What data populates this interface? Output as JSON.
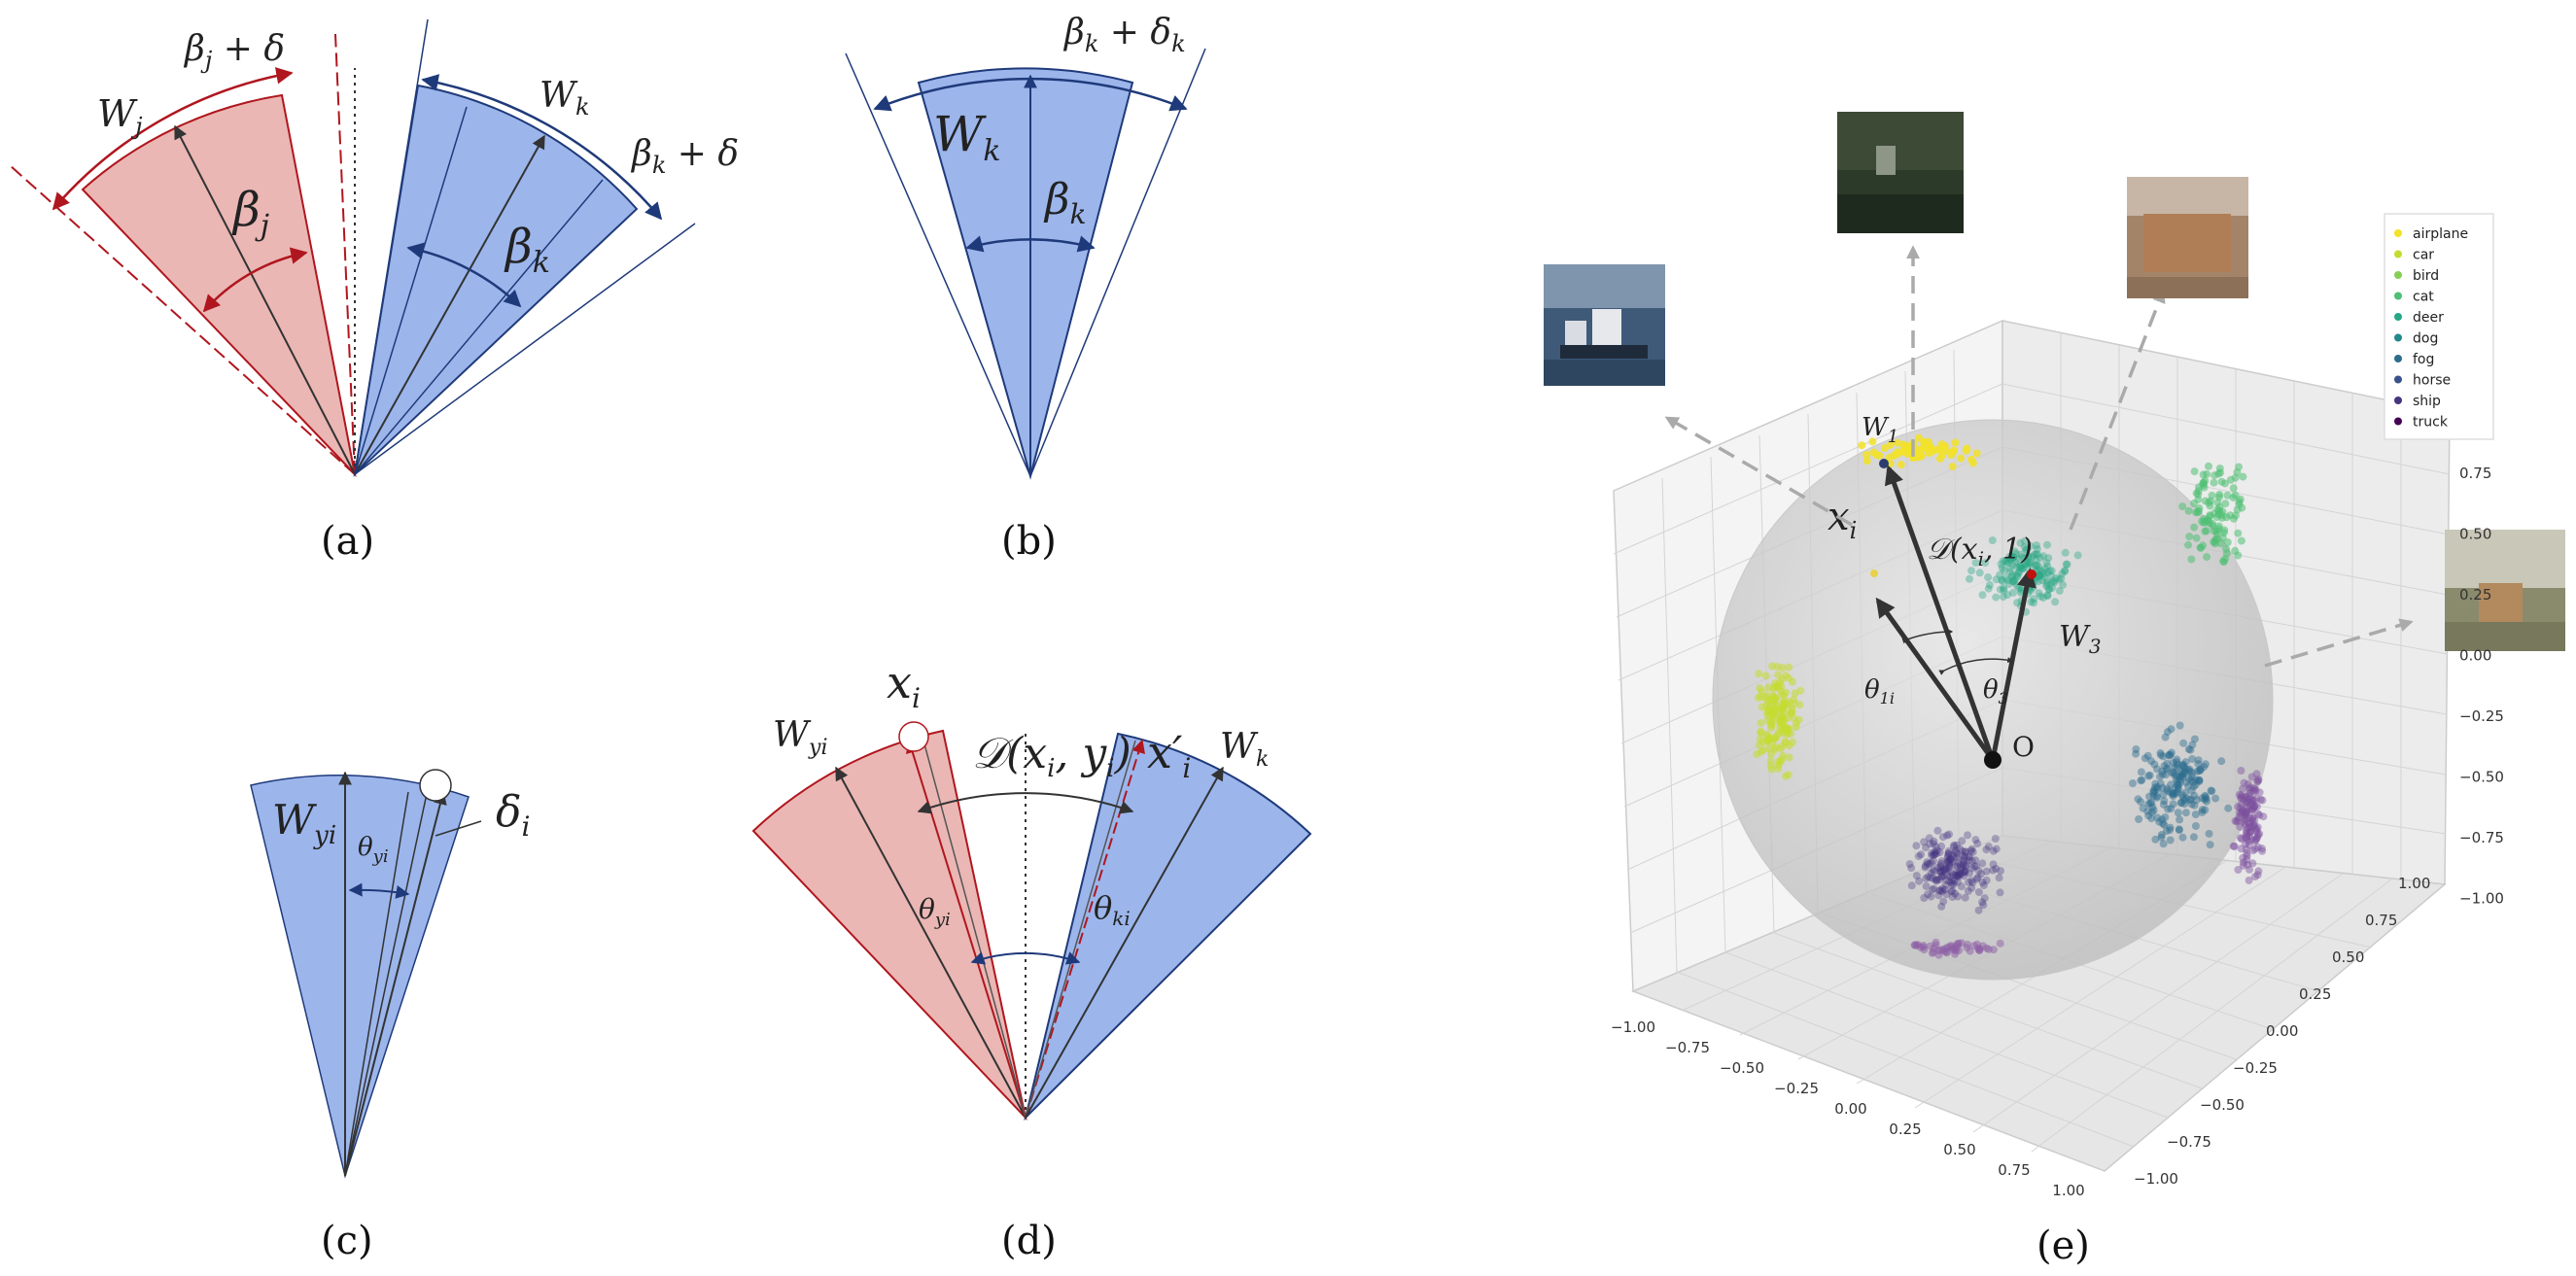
{
  "captions": {
    "a": "(a)",
    "b": "(b)",
    "c": "(c)",
    "d": "(d)",
    "e": "(e)"
  },
  "panel_a": {
    "wj": "W",
    "wj_sub": "j",
    "wk": "W",
    "wk_sub": "k",
    "beta_j": "β",
    "beta_j_sub": "j",
    "beta_k": "β",
    "beta_k_sub": "k",
    "bj_delta": "β",
    "bj_delta_sub": "j",
    "bj_delta_rest": " + δ",
    "bk_delta": "β",
    "bk_delta_sub": "k",
    "bk_delta_rest": " + δ"
  },
  "panel_b": {
    "wk": "W",
    "wk_sub": "k",
    "beta_k": "β",
    "beta_k_sub": "k",
    "bk_dk": "β",
    "bk_dk_sub": "k",
    "bk_dk_rest": " + δ",
    "bk_dk_sub2": "k"
  },
  "panel_c": {
    "wyi": "W",
    "wyi_sub": "yi",
    "theta": "θ",
    "theta_sub": "yi",
    "delta": "δ",
    "delta_sub": "i"
  },
  "panel_d": {
    "xi": "x",
    "xi_sub": "i",
    "dxy": "𝒟(x",
    "dxy_sub": "i",
    "dxy_mid": ", y",
    "dxy_sub2": "i",
    "dxy_end": ")",
    "xpi": "x′",
    "xpi_sub": "i",
    "wyi": "W",
    "wyi_sub": "yi",
    "wk": "W",
    "wk_sub": "k",
    "theta_yi": "θ",
    "theta_yi_sub": "yi",
    "theta_ki": "θ",
    "theta_ki_sub": "ki"
  },
  "panel_e": {
    "w1": "W",
    "w1_sub": "1",
    "w3": "W",
    "w3_sub": "3",
    "xi": "x",
    "xi_sub": "i",
    "d1": "𝒟(x",
    "d1_sub": "i",
    "d1_end": ", 1)",
    "theta1": "θ",
    "theta1_sub": "1i",
    "theta3": "θ",
    "theta3_sub": "3",
    "origin": "O",
    "z_ticks": [
      "0.75",
      "0.50",
      "0.25",
      "0.00",
      "−0.25",
      "−0.50",
      "−0.75",
      "−1.00"
    ],
    "x_ticks": [
      "−1.00",
      "−0.75",
      "−0.50",
      "−0.25",
      "0.00",
      "0.25",
      "0.50",
      "0.75",
      "1.00"
    ],
    "y_ticks": [
      "−1.00",
      "−0.75",
      "−0.50",
      "−0.25",
      "0.00",
      "0.25",
      "0.50",
      "0.75",
      "1.00"
    ],
    "legend": [
      {
        "label": "airplane",
        "color": "#f2e229"
      },
      {
        "label": "car",
        "color": "#c4dc2f"
      },
      {
        "label": "bird",
        "color": "#86cf55"
      },
      {
        "label": "cat",
        "color": "#4fbf73"
      },
      {
        "label": "deer",
        "color": "#27a785"
      },
      {
        "label": "dog",
        "color": "#22888c"
      },
      {
        "label": "fog",
        "color": "#2c6d8e"
      },
      {
        "label": "horse",
        "color": "#3a528b"
      },
      {
        "label": "ship",
        "color": "#463480"
      },
      {
        "label": "truck",
        "color": "#440154"
      }
    ]
  }
}
